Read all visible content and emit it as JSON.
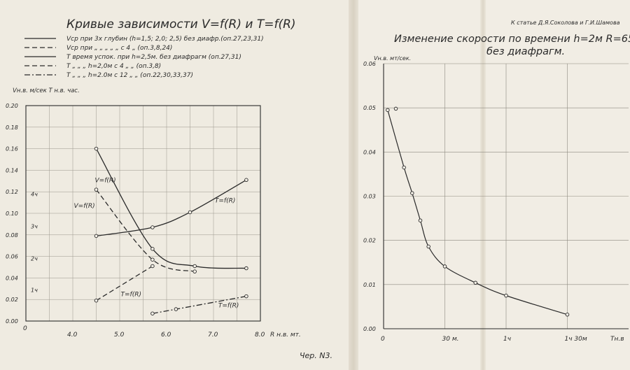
{
  "left_title": "Кривые зависимости V=f(R) и T=f(R)",
  "legend": [
    {
      "text": "Vср при 3х глубин (h=1,5; 2,0; 2,5) без диафр.(оп.27,23,31)",
      "style": "solid"
    },
    {
      "text": "Vср при „ „ „ „ „ с 4 „ (оп.3,8,24)",
      "style": "dashed"
    },
    {
      "text": "T время успок. при h=2,5м. без диафрагм (оп.27,31)",
      "style": "solid"
    },
    {
      "text": "T „ „ „ h=2,0м с 4 „ „ (оп.3,8)",
      "style": "dashed"
    },
    {
      "text": "T „ „ „ h=2.0м с 12 „ „ (оп.22,30,33,37)",
      "style": "dashdot"
    }
  ],
  "right_header": "К статье Д.Я.Соколова и Г.И.Шамова",
  "right_title_1": "Изменение скорости по времени h=2м R=65",
  "right_title_2": "без диафрагм.",
  "figure_label": "Чер. N3.",
  "chart_data": [
    {
      "type": "line",
      "title": "Кривые зависимости V=f(R) и T=f(R)",
      "ylabel": "Vн.в. м/сек  T н.в. час.",
      "xlabel": "R н.в. мт.",
      "xlim": [
        3.0,
        8.0
      ],
      "ylim": [
        0.0,
        0.2
      ],
      "x_ticks": [
        "4.0",
        "5.0",
        "6.0",
        "7.0",
        "8.0"
      ],
      "origin_label": "0",
      "y_ticks": [
        "0.00",
        "0.02",
        "0.04",
        "0.06",
        "0.08",
        "0.10",
        "0.12",
        "0.14",
        "0.16",
        "0.18",
        "0.20"
      ],
      "t_ticks": [
        "1ч",
        "2ч",
        "3ч",
        "4ч"
      ],
      "series": [
        {
          "style": "solid",
          "kind": "V",
          "label": "V=f(R)",
          "points": [
            [
              4.5,
              0.16
            ],
            [
              5.7,
              0.067
            ],
            [
              6.6,
              0.051
            ],
            [
              7.7,
              0.049
            ]
          ]
        },
        {
          "style": "dashed",
          "kind": "V",
          "label": "V=f(R)",
          "points": [
            [
              4.5,
              0.122
            ],
            [
              5.7,
              0.057
            ],
            [
              6.6,
              0.046
            ]
          ]
        },
        {
          "style": "solid",
          "kind": "T",
          "label": "T=f(R)",
          "points": [
            [
              4.5,
              0.079
            ],
            [
              5.7,
              0.087
            ],
            [
              6.5,
              0.101
            ],
            [
              7.7,
              0.131
            ]
          ]
        },
        {
          "style": "dashed",
          "kind": "T",
          "label": "T=f(R)",
          "points": [
            [
              4.5,
              0.019
            ],
            [
              5.7,
              0.051
            ]
          ]
        },
        {
          "style": "dashdot",
          "kind": "T",
          "label": "T=f(R)",
          "points": [
            [
              5.7,
              0.007
            ],
            [
              6.2,
              0.011
            ],
            [
              7.7,
              0.023
            ]
          ]
        }
      ]
    },
    {
      "type": "line",
      "ylabel": "Vн.в. мт/сек.",
      "xlabel": "Tн.в",
      "ylim": [
        0.0,
        0.06
      ],
      "xlim": [
        0,
        120
      ],
      "x_ticks": [
        {
          "v": 0,
          "t": "0"
        },
        {
          "v": 30,
          "t": "30 м."
        },
        {
          "v": 60,
          "t": "1ч"
        },
        {
          "v": 90,
          "t": "1ч 30м"
        }
      ],
      "y_ticks": [
        "0.00",
        "0.01",
        "0.02",
        "0.03",
        "0.04",
        "0.05",
        "0.06"
      ],
      "points": [
        [
          2,
          0.0495
        ],
        [
          6,
          0.0498
        ],
        [
          10,
          0.0365
        ],
        [
          14,
          0.0307
        ],
        [
          18,
          0.0245
        ],
        [
          22,
          0.0186
        ],
        [
          30,
          0.0141
        ],
        [
          45,
          0.0104
        ],
        [
          60,
          0.0075
        ],
        [
          90,
          0.0032
        ]
      ]
    }
  ]
}
